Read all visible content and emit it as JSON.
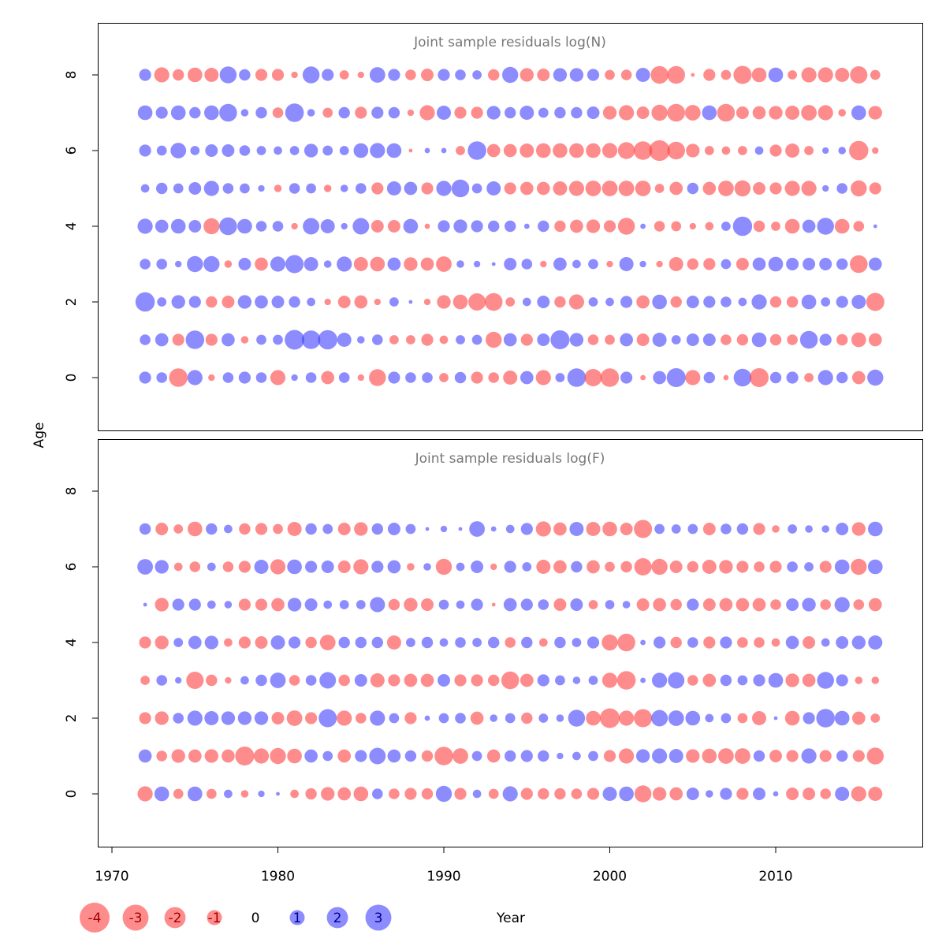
{
  "chart_data": {
    "type": "bubble",
    "xlabel": "Year",
    "ylabel": "Age",
    "x_ticks": [
      1970,
      1980,
      1990,
      2000,
      2010
    ],
    "y_ticks": [
      0,
      2,
      4,
      6,
      8
    ],
    "xlim": [
      1969.5,
      2018
    ],
    "ylim": [
      -1.3,
      9.3
    ],
    "positive_color": "#4040ff",
    "negative_color": "#ff4040",
    "fill_opacity": 0.6,
    "years": [
      1972,
      1973,
      1974,
      1975,
      1976,
      1977,
      1978,
      1979,
      1980,
      1981,
      1982,
      1983,
      1984,
      1985,
      1986,
      1987,
      1988,
      1989,
      1990,
      1991,
      1992,
      1993,
      1994,
      1995,
      1996,
      1997,
      1998,
      1999,
      2000,
      2001,
      2002,
      2003,
      2004,
      2005,
      2006,
      2007,
      2008,
      2009,
      2010,
      2011,
      2012,
      2013,
      2014,
      2015,
      2016
    ],
    "legend": [
      {
        "label": "-4",
        "value": -4
      },
      {
        "label": "-3",
        "value": -3
      },
      {
        "label": "-2",
        "value": -2
      },
      {
        "label": "-1",
        "value": -1
      },
      {
        "label": "0",
        "value": 0
      },
      {
        "label": "1",
        "value": 1
      },
      {
        "label": "2",
        "value": 2
      },
      {
        "label": "3",
        "value": 3
      }
    ],
    "panels": [
      {
        "title": "Joint sample residuals log(N)",
        "ages": [
          0,
          1,
          2,
          3,
          4,
          5,
          6,
          7,
          8
        ],
        "residuals": [
          [
            1.0,
            0.8,
            -2.4,
            1.6,
            -0.3,
            0.8,
            1.0,
            0.8,
            -1.6,
            0.3,
            0.8,
            -1.2,
            0.8,
            -0.3,
            -2.0,
            1.0,
            0.8,
            0.8,
            -0.6,
            0.9,
            -1.0,
            -0.8,
            -1.4,
            1.2,
            -1.6,
            0.6,
            2.4,
            -2.1,
            -2.4,
            1.0,
            -0.2,
            1.2,
            2.5,
            -1.6,
            0.9,
            -0.2,
            2.2,
            -2.5,
            0.9,
            1.0,
            -0.6,
            1.6,
            0.9,
            -1.2,
            1.8
          ],
          [
            0.8,
            1.2,
            -1.0,
            2.4,
            -1.0,
            1.2,
            -0.4,
            0.7,
            0.7,
            2.7,
            2.4,
            2.6,
            1.4,
            0.4,
            0.8,
            -0.6,
            -0.6,
            -1.0,
            -0.5,
            0.6,
            0.7,
            -1.8,
            1.2,
            -1.0,
            1.1,
            2.5,
            1.3,
            -0.8,
            -0.7,
            1.2,
            -1.1,
            1.4,
            0.6,
            1.1,
            1.1,
            -0.8,
            -0.9,
            1.5,
            -0.9,
            -0.8,
            2.2,
            1.0,
            -0.9,
            -1.5,
            -1.2
          ],
          [
            2.6,
            0.6,
            1.3,
            1.0,
            -0.9,
            -1.1,
            1.3,
            1.2,
            1.1,
            0.9,
            0.5,
            -0.3,
            -1.1,
            -1.2,
            -0.3,
            0.6,
            0.1,
            -0.3,
            -1.3,
            -1.5,
            -2.1,
            -2.2,
            -0.6,
            0.5,
            1.1,
            -0.9,
            -1.6,
            0.6,
            0.5,
            1.0,
            -1.2,
            1.5,
            -0.9,
            1.1,
            1.0,
            0.8,
            0.5,
            1.6,
            -0.9,
            -0.9,
            1.5,
            0.6,
            1.0,
            1.4,
            -2.3
          ],
          [
            0.8,
            0.8,
            0.3,
            1.8,
            1.8,
            -0.4,
            1.1,
            -1.2,
            1.6,
            2.3,
            1.4,
            0.4,
            1.6,
            -1.4,
            -1.5,
            1.2,
            -1.3,
            -1.2,
            -1.7,
            0.4,
            0.3,
            0.1,
            1.1,
            0.8,
            -0.3,
            1.2,
            0.5,
            0.7,
            -0.3,
            1.4,
            0.3,
            -0.3,
            -1.4,
            -0.9,
            -1.0,
            0.7,
            -1.1,
            1.2,
            1.5,
            1.1,
            1.1,
            1.1,
            0.9,
            -2.2,
            1.2
          ],
          [
            1.6,
            1.2,
            1.5,
            1.1,
            -1.8,
            2.2,
            1.5,
            0.8,
            0.8,
            -0.3,
            1.9,
            1.4,
            0.3,
            1.9,
            -1.1,
            -1.1,
            1.5,
            -0.2,
            1.0,
            1.3,
            1.0,
            0.9,
            0.9,
            0.2,
            0.9,
            -0.9,
            -1.2,
            -1.3,
            -1.0,
            -2.0,
            0.2,
            -0.8,
            -0.7,
            -0.3,
            -0.5,
            0.6,
            2.6,
            -0.9,
            -0.6,
            -1.5,
            1.2,
            2.0,
            -1.5,
            -0.8,
            0.1
          ],
          [
            0.5,
            0.9,
            0.7,
            1.1,
            1.6,
            0.8,
            0.7,
            0.3,
            -0.4,
            0.8,
            0.7,
            -0.4,
            0.4,
            0.8,
            -1.0,
            1.4,
            1.2,
            -1.0,
            1.6,
            2.2,
            0.7,
            1.4,
            -1.0,
            -1.2,
            -1.2,
            -1.4,
            -1.6,
            -1.7,
            -1.7,
            -1.7,
            -1.7,
            -0.6,
            -1.2,
            0.9,
            -1.2,
            -1.7,
            -1.8,
            -1.1,
            -1.0,
            -1.6,
            -1.6,
            0.3,
            0.8,
            -1.8,
            -1.0
          ],
          [
            1.0,
            0.7,
            1.7,
            0.6,
            1.1,
            1.1,
            0.8,
            0.6,
            0.5,
            0.6,
            1.3,
            0.7,
            0.6,
            1.5,
            1.6,
            1.5,
            -0.1,
            0.2,
            0.2,
            -0.6,
            2.4,
            -1.2,
            -1.2,
            -1.4,
            -1.5,
            -1.5,
            -1.5,
            -1.5,
            -1.6,
            -2.0,
            -2.4,
            -3.0,
            -2.2,
            -1.3,
            -0.6,
            -0.5,
            -0.6,
            0.5,
            -1.0,
            -1.4,
            -0.6,
            0.3,
            0.4,
            -2.6,
            -0.3
          ],
          [
            1.5,
            1.0,
            1.5,
            0.9,
            1.5,
            2.2,
            0.4,
            0.9,
            -0.8,
            2.4,
            0.4,
            -0.7,
            0.9,
            -1.0,
            1.0,
            0.9,
            -0.3,
            -1.6,
            1.4,
            -1.0,
            -1.0,
            1.3,
            0.9,
            1.4,
            0.7,
            0.9,
            0.9,
            1.1,
            -1.3,
            -1.6,
            -1.1,
            -1.8,
            -2.2,
            -1.7,
            1.5,
            -2.2,
            -1.1,
            -1.2,
            -1.3,
            -1.4,
            -1.7,
            -1.6,
            -0.4,
            1.5,
            -1.3
          ],
          [
            1.0,
            -1.6,
            -0.9,
            -1.5,
            -1.4,
            2.0,
            0.9,
            -1.0,
            -1.0,
            -0.3,
            2.0,
            1.0,
            -0.6,
            -0.3,
            1.7,
            1.0,
            -0.8,
            -1.1,
            1.0,
            0.8,
            0.6,
            -0.9,
            1.8,
            -1.3,
            -1.1,
            1.3,
            1.3,
            1.0,
            -0.7,
            -0.8,
            1.4,
            -2.2,
            -2.2,
            -0.1,
            -1.0,
            -0.7,
            -2.3,
            -1.5,
            1.5,
            -0.6,
            -1.6,
            -1.6,
            -1.4,
            -2.1,
            -0.7
          ]
        ]
      },
      {
        "title": "Joint sample residuals log(F)",
        "ages": [
          0,
          1,
          2,
          3,
          4,
          5,
          6,
          7
        ],
        "residuals": [
          [
            -1.6,
            1.5,
            -0.7,
            1.5,
            -0.7,
            0.5,
            -0.4,
            0.3,
            0.1,
            -0.5,
            -0.9,
            -1.3,
            -1.2,
            -1.5,
            0.8,
            -0.8,
            -1.0,
            -0.9,
            1.8,
            -1.0,
            0.5,
            -0.7,
            1.6,
            -1.0,
            -0.9,
            -0.9,
            -0.8,
            -1.0,
            1.4,
            1.5,
            -2.0,
            -1.3,
            -1.2,
            1.1,
            0.4,
            1.0,
            -1.0,
            1.1,
            0.2,
            -1.1,
            -1.1,
            -0.8,
            1.4,
            -1.6,
            -1.4
          ],
          [
            1.2,
            -0.8,
            -1.3,
            -1.2,
            -1.3,
            -1.2,
            -2.5,
            -1.6,
            -1.8,
            -1.5,
            1.2,
            0.7,
            -1.2,
            1.0,
            1.9,
            1.2,
            0.9,
            -0.9,
            -2.4,
            -1.7,
            0.7,
            -1.2,
            0.9,
            1.0,
            0.9,
            0.3,
            0.5,
            0.7,
            -1.0,
            -1.6,
            1.3,
            1.6,
            1.4,
            -1.3,
            -1.5,
            -1.7,
            -1.7,
            0.9,
            -1.1,
            -1.0,
            1.6,
            -1.0,
            0.9,
            -1.0,
            -2.0
          ],
          [
            -1.0,
            -1.3,
            0.8,
            1.6,
            1.4,
            1.3,
            1.3,
            1.3,
            -1.1,
            -1.7,
            -1.0,
            2.3,
            -1.6,
            -0.8,
            1.6,
            0.7,
            -1.0,
            0.2,
            0.7,
            0.8,
            -1.2,
            0.4,
            0.7,
            -0.9,
            0.6,
            0.4,
            2.0,
            -1.5,
            -2.7,
            -1.6,
            -2.3,
            1.9,
            1.7,
            1.5,
            0.5,
            0.7,
            -0.7,
            -1.4,
            0.1,
            -1.5,
            1.0,
            2.4,
            1.5,
            -1.2,
            -0.6
          ],
          [
            -0.6,
            0.8,
            0.3,
            -2.1,
            -0.9,
            -0.3,
            0.5,
            0.9,
            1.7,
            -0.8,
            0.8,
            1.9,
            -0.9,
            1.1,
            -1.4,
            -1.0,
            -1.2,
            -1.2,
            1.1,
            -1.0,
            -1.0,
            -0.9,
            -2.2,
            -1.2,
            1.0,
            0.7,
            0.4,
            0.6,
            -1.6,
            -2.4,
            0.2,
            1.6,
            1.9,
            -0.8,
            -1.2,
            0.9,
            0.7,
            1.0,
            1.5,
            -1.3,
            -1.2,
            2.0,
            1.0,
            -0.4,
            -0.4
          ],
          [
            -1.0,
            -1.3,
            0.6,
            1.2,
            1.3,
            -0.5,
            -1.0,
            -1.1,
            1.4,
            1.0,
            -0.9,
            -1.7,
            0.9,
            0.9,
            0.9,
            -1.4,
            0.6,
            0.9,
            0.5,
            0.8,
            0.6,
            0.9,
            -0.8,
            0.9,
            -0.5,
            0.9,
            0.6,
            1.0,
            -1.8,
            -2.2,
            0.2,
            1.0,
            -0.9,
            0.8,
            -1.0,
            1.0,
            -0.8,
            -0.8,
            -0.5,
            1.2,
            -1.1,
            0.5,
            1.1,
            1.3,
            1.4
          ],
          [
            0.1,
            -1.3,
            1.0,
            1.0,
            0.5,
            0.4,
            -1.0,
            -1.0,
            -1.2,
            1.3,
            1.1,
            0.5,
            0.6,
            0.6,
            1.6,
            -0.9,
            -1.3,
            -1.1,
            0.7,
            0.5,
            1.0,
            -0.1,
            1.2,
            1.0,
            0.8,
            -1.1,
            1.1,
            -0.6,
            0.6,
            0.4,
            -1.1,
            -1.2,
            -0.9,
            1.0,
            -1.1,
            -1.2,
            -1.2,
            -1.2,
            -0.8,
            1.1,
            1.3,
            -0.8,
            1.6,
            -0.8,
            -1.2
          ],
          [
            1.7,
            1.3,
            -0.5,
            -0.8,
            0.5,
            -0.8,
            -1.0,
            1.4,
            -1.6,
            1.5,
            1.0,
            1.1,
            -1.1,
            -1.6,
            1.0,
            1.2,
            -0.4,
            0.4,
            -1.8,
            0.5,
            1.1,
            -0.3,
            1.0,
            0.6,
            -1.4,
            -1.2,
            0.9,
            -1.2,
            -0.7,
            -0.9,
            -2.1,
            -1.8,
            -1.1,
            -0.9,
            -1.4,
            -1.3,
            -1.0,
            -0.8,
            -1.0,
            0.8,
            0.6,
            -1.0,
            1.5,
            -1.8,
            1.5
          ],
          [
            0.9,
            -1.1,
            -0.6,
            -1.5,
            0.9,
            0.5,
            -0.9,
            -1.0,
            -0.7,
            -1.4,
            0.9,
            0.7,
            -1.1,
            -1.3,
            0.9,
            1.1,
            0.7,
            0.1,
            0.3,
            0.1,
            1.7,
            0.2,
            0.5,
            1.0,
            -1.6,
            -1.2,
            1.4,
            -1.4,
            -1.5,
            -1.1,
            -2.3,
            0.7,
            0.6,
            0.7,
            -1.1,
            0.8,
            0.9,
            -1.0,
            -0.4,
            0.6,
            0.4,
            0.4,
            1.1,
            -1.3,
            1.5
          ]
        ]
      }
    ]
  }
}
